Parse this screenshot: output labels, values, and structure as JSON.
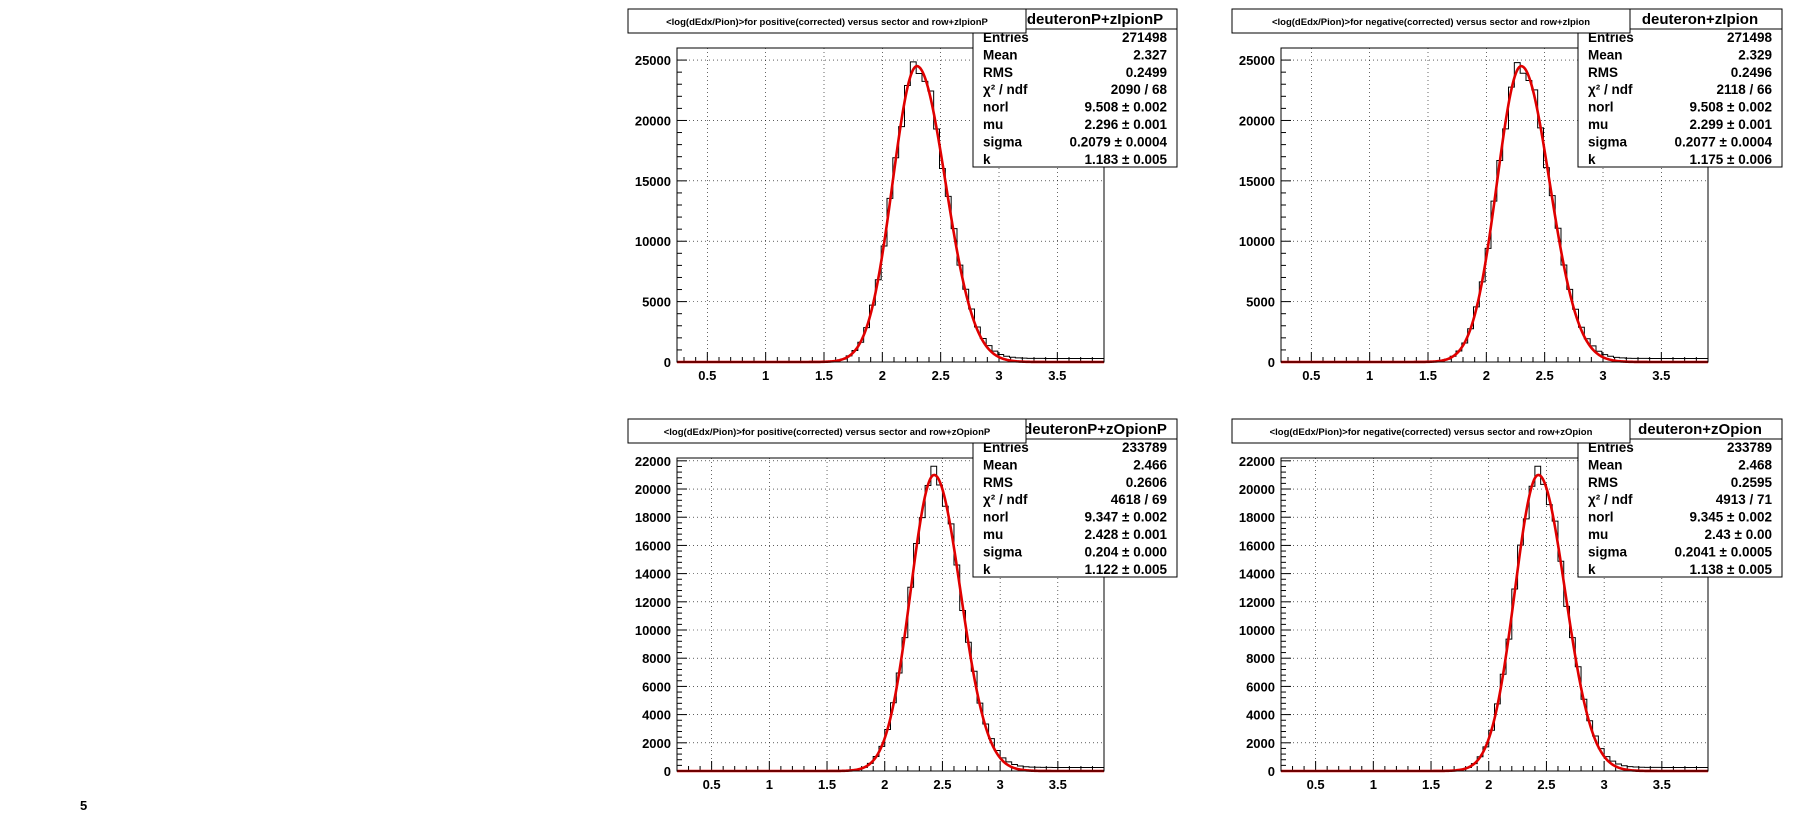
{
  "chart_data": [
    {
      "type": "bar",
      "title": "<log(dEdx/Pion)>for positive(corrected) versus sector and row+zIpionP",
      "stats_name": "deuteronP+zIpionP",
      "xlim": [
        0.24,
        3.9
      ],
      "ylim": [
        0,
        26000
      ],
      "xticks": [
        0.5,
        1,
        1.5,
        2,
        2.5,
        3,
        3.5
      ],
      "xtick_labels": [
        "0.5",
        "1",
        "1.5",
        "2",
        "2.5",
        "3",
        "3.5"
      ],
      "yticks": [
        0,
        5000,
        10000,
        15000,
        20000,
        25000
      ],
      "ytick_labels": [
        "0",
        "5000",
        "10000",
        "15000",
        "20000",
        "25000"
      ],
      "grid": true,
      "fit": {
        "peak": 24500,
        "mu": 2.296,
        "sigma": 0.2079,
        "k": 1.183
      },
      "stats": [
        {
          "key": "Entries",
          "value": "271498"
        },
        {
          "key": "Mean",
          "value": "2.327"
        },
        {
          "key": "RMS",
          "value": "0.2499"
        },
        {
          "key": "χ² / ndf",
          "value": "2090 / 68"
        },
        {
          "key": "norl",
          "value": "9.508 ± 0.002"
        },
        {
          "key": "mu",
          "value": "2.296 ± 0.001"
        },
        {
          "key": "sigma",
          "value": "0.2079 ± 0.0004"
        },
        {
          "key": "k",
          "value": "1.183 ± 0.005"
        }
      ]
    },
    {
      "type": "bar",
      "title": "<log(dEdx/Pion)>for negative(corrected) versus sector and row+zIpion",
      "stats_name": "deuteron+zIpion",
      "xlim": [
        0.24,
        3.9
      ],
      "ylim": [
        0,
        26000
      ],
      "xticks": [
        0.5,
        1,
        1.5,
        2,
        2.5,
        3,
        3.5
      ],
      "xtick_labels": [
        "0.5",
        "1",
        "1.5",
        "2",
        "2.5",
        "3",
        "3.5"
      ],
      "yticks": [
        0,
        5000,
        10000,
        15000,
        20000,
        25000
      ],
      "ytick_labels": [
        "0",
        "5000",
        "10000",
        "15000",
        "20000",
        "25000"
      ],
      "grid": true,
      "fit": {
        "peak": 24500,
        "mu": 2.299,
        "sigma": 0.2077,
        "k": 1.175
      },
      "stats": [
        {
          "key": "Entries",
          "value": "271498"
        },
        {
          "key": "Mean",
          "value": "2.329"
        },
        {
          "key": "RMS",
          "value": "0.2496"
        },
        {
          "key": "χ² / ndf",
          "value": "2118 / 66"
        },
        {
          "key": "norl",
          "value": "9.508 ± 0.002"
        },
        {
          "key": "mu",
          "value": "2.299 ± 0.001"
        },
        {
          "key": "sigma",
          "value": "0.2077 ± 0.0004"
        },
        {
          "key": "k",
          "value": "1.175 ± 0.006"
        }
      ]
    },
    {
      "type": "bar",
      "title": "<log(dEdx/Pion)>for positive(corrected) versus sector and row+zOpionP",
      "stats_name": "deuteronP+zOpionP",
      "xlim": [
        0.2,
        3.9
      ],
      "ylim": [
        0,
        22200
      ],
      "xticks": [
        0.5,
        1,
        1.5,
        2,
        2.5,
        3,
        3.5
      ],
      "xtick_labels": [
        "0.5",
        "1",
        "1.5",
        "2",
        "2.5",
        "3",
        "3.5"
      ],
      "yticks": [
        0,
        2000,
        4000,
        6000,
        8000,
        10000,
        12000,
        14000,
        16000,
        18000,
        20000,
        22000
      ],
      "ytick_labels": [
        "0",
        "2000",
        "4000",
        "6000",
        "8000",
        "10000",
        "12000",
        "14000",
        "16000",
        "18000",
        "20000",
        "22000"
      ],
      "grid": true,
      "fit": {
        "peak": 21000,
        "mu": 2.428,
        "sigma": 0.204,
        "k": 1.122
      },
      "stats": [
        {
          "key": "Entries",
          "value": "233789"
        },
        {
          "key": "Mean",
          "value": "2.466"
        },
        {
          "key": "RMS",
          "value": "0.2606"
        },
        {
          "key": "χ² / ndf",
          "value": "4618 / 69"
        },
        {
          "key": "norl",
          "value": "9.347 ± 0.002"
        },
        {
          "key": "mu",
          "value": "2.428 ± 0.001"
        },
        {
          "key": "sigma",
          "value": "0.204 ± 0.000"
        },
        {
          "key": "k",
          "value": "1.122 ± 0.005"
        }
      ]
    },
    {
      "type": "bar",
      "title": "<log(dEdx/Pion)>for negative(corrected) versus sector and row+zOpion",
      "stats_name": "deuteron+zOpion",
      "xlim": [
        0.2,
        3.9
      ],
      "ylim": [
        0,
        22200
      ],
      "xticks": [
        0.5,
        1,
        1.5,
        2,
        2.5,
        3,
        3.5
      ],
      "xtick_labels": [
        "0.5",
        "1",
        "1.5",
        "2",
        "2.5",
        "3",
        "3.5"
      ],
      "yticks": [
        0,
        2000,
        4000,
        6000,
        8000,
        10000,
        12000,
        14000,
        16000,
        18000,
        20000,
        22000
      ],
      "ytick_labels": [
        "0",
        "2000",
        "4000",
        "6000",
        "8000",
        "10000",
        "12000",
        "14000",
        "16000",
        "18000",
        "20000",
        "22000"
      ],
      "grid": true,
      "fit": {
        "peak": 21000,
        "mu": 2.43,
        "sigma": 0.2041,
        "k": 1.138
      },
      "stats": [
        {
          "key": "Entries",
          "value": "233789"
        },
        {
          "key": "Mean",
          "value": "2.468"
        },
        {
          "key": "RMS",
          "value": "0.2595"
        },
        {
          "key": "χ² / ndf",
          "value": "4913 / 71"
        },
        {
          "key": "norl",
          "value": "9.345 ± 0.002"
        },
        {
          "key": "mu",
          "value": "2.43 ± 0.00"
        },
        {
          "key": "sigma",
          "value": "0.2041 ± 0.0005"
        },
        {
          "key": "k",
          "value": "1.138 ± 0.005"
        }
      ]
    }
  ],
  "corner_mark": "5",
  "colors": {
    "fit": "#e00000",
    "histogram": "#000000",
    "background": "#ffffff"
  }
}
